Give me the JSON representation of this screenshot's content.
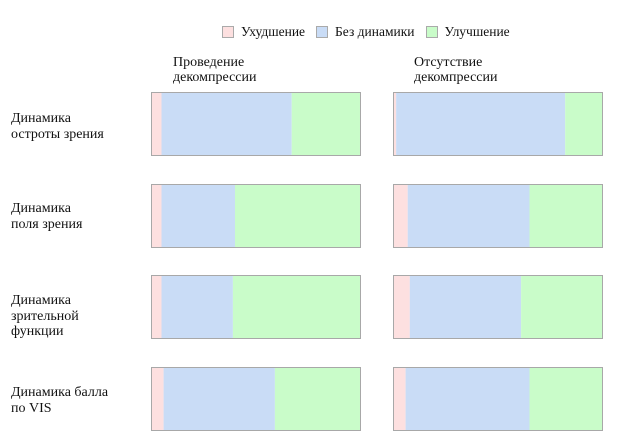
{
  "chart_data": {
    "type": "bar",
    "orientation": "horizontal",
    "stacked": "100%",
    "legend": {
      "placement": "top",
      "entries": [
        {
          "name": "Ухудшение",
          "color": "#fde0e0"
        },
        {
          "name": "Без динамики",
          "color": "#c9dcf6"
        },
        {
          "name": "Улучшение",
          "color": "#c9fcc9"
        }
      ]
    },
    "columns": [
      "Проведение\nдекомпрессии",
      "Отсутствие\nдекомпрессии"
    ],
    "rows": [
      "Динамика\nостроты зрения",
      "Динамика\nполя зрения",
      "Динамика\nзрительной\nфункции",
      "Динамика балла\nпо VIS"
    ],
    "values": [
      [
        [
          5,
          62,
          33
        ],
        [
          1.5,
          80.5,
          18
        ]
      ],
      [
        [
          5,
          35,
          60
        ],
        [
          7,
          58,
          35
        ]
      ],
      [
        [
          5,
          34,
          61
        ],
        [
          8,
          53,
          39
        ]
      ],
      [
        [
          6,
          53,
          41
        ],
        [
          6,
          59,
          35
        ]
      ]
    ],
    "grid": false
  }
}
